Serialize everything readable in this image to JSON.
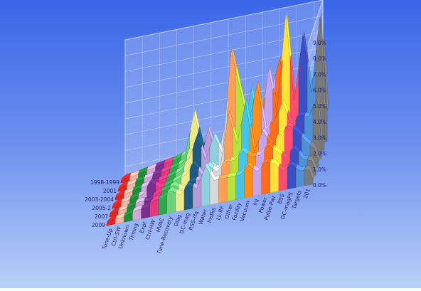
{
  "chart_data": {
    "type": "area",
    "projection": "3d-ribbon",
    "title": "",
    "xlabel": "",
    "ylabel": "",
    "categories": [
      "Tune-Up",
      "Ctrl-SW",
      "Unknown",
      "Timing",
      "Expt",
      "Ctrl-HW",
      "HVAC",
      "Tune-Recovery",
      "Diag",
      "DC-mag",
      "RSS-rfq",
      "Water",
      "Instks",
      "LL-RF",
      "Other",
      "Facility",
      "Vacuum",
      "Inj",
      "Power",
      "Pulse-Pwr",
      "BSS",
      "DC-magPS",
      "Targets",
      "201"
    ],
    "series_labels": [
      "1998-1999",
      "2001",
      "2003-2004",
      "2005-2",
      "2007",
      "2009"
    ],
    "zlim": [
      0,
      9
    ],
    "z_ticks": [
      "0.0%",
      "1.0%",
      "2.0%",
      "3.0%",
      "4.0%",
      "5.0%",
      "6.0%",
      "7.0%",
      "8.0%",
      "9.0%"
    ],
    "values": [
      [
        0.25,
        0.28,
        0.4,
        0.5,
        0.6,
        0.7,
        0.8,
        1.0,
        3.5,
        1.2,
        1.5,
        0.8,
        1.7,
        1.2,
        3.2,
        2.5,
        1.8,
        4.0,
        5.8,
        2.5,
        3.0,
        2.8,
        4.5,
        6.5
      ],
      [
        0.25,
        0.28,
        0.4,
        0.5,
        0.6,
        0.7,
        0.8,
        1.0,
        1.8,
        0.9,
        2.8,
        1.0,
        2.8,
        1.5,
        1.8,
        4.8,
        1.8,
        5.8,
        3.0,
        9.0,
        3.5,
        7.5,
        3.8,
        8.5
      ],
      [
        0.25,
        0.28,
        0.4,
        0.5,
        0.6,
        0.7,
        0.8,
        1.0,
        1.5,
        3.0,
        1.4,
        2.8,
        1.5,
        8.0,
        5.5,
        3.0,
        5.5,
        2.5,
        3.0,
        4.0,
        2.5,
        3.0,
        2.8,
        3.8
      ],
      [
        0.25,
        0.28,
        0.4,
        0.5,
        1.2,
        0.7,
        0.8,
        1.0,
        1.2,
        1.8,
        0.9,
        1.5,
        1.0,
        4.5,
        2.5,
        5.0,
        1.8,
        3.0,
        2.0,
        2.5,
        3.0,
        2.5,
        1.8,
        1.2
      ],
      [
        0.25,
        0.28,
        0.4,
        0.6,
        0.5,
        0.9,
        1.0,
        1.2,
        0.8,
        1.2,
        1.2,
        2.0,
        1.5,
        2.0,
        2.0,
        2.5,
        2.0,
        2.0,
        2.5,
        2.0,
        1.5,
        2.0,
        1.2,
        1.0
      ],
      [
        0.3,
        0.3,
        0.4,
        0.6,
        0.6,
        1.0,
        1.0,
        1.4,
        1.0,
        1.5,
        1.2,
        2.5,
        1.5,
        1.5,
        1.5,
        1.5,
        2.0,
        1.5,
        2.0,
        1.8,
        1.2,
        1.5,
        1.0,
        1.0
      ]
    ],
    "category_colors": [
      "#e8221c",
      "#f0b7a6",
      "#1f8c3a",
      "#cfa7d8",
      "#7a2f8e",
      "#e63780",
      "#2fa84f",
      "#6fd07a",
      "#ebe88d",
      "#1e5b84",
      "#b59bd8",
      "#8fd0dc",
      "#d8d8d8",
      "#ff9e55",
      "#b7e13b",
      "#46c3e6",
      "#ff8c1a",
      "#c7a3e8",
      "#ff6d1a",
      "#ffe23a",
      "#ff4d6d",
      "#3b4fc2",
      "#4f8fd6",
      "#7a7a7a"
    ],
    "grid": true,
    "legend": "none"
  }
}
